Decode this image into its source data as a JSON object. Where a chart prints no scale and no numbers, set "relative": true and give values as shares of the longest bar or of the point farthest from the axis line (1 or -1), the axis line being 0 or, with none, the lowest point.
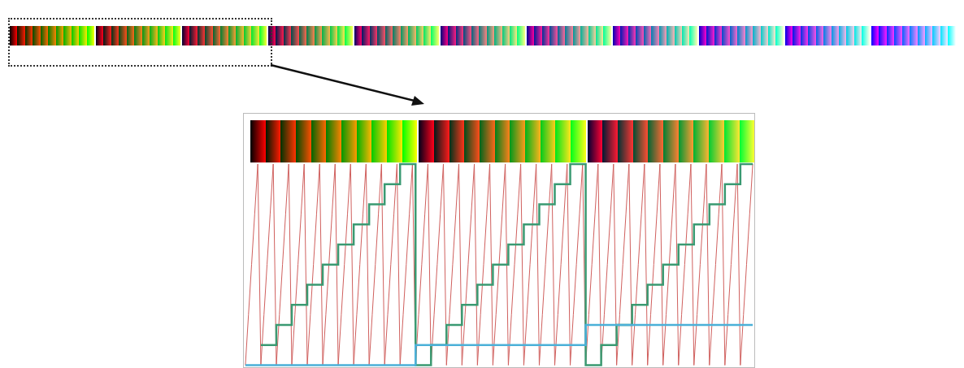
{
  "chart_data": {
    "type": "line",
    "relative": true,
    "categories": [
      null,
      null,
      null,
      null,
      null,
      null,
      null,
      null,
      null,
      null,
      null,
      null,
      null,
      null,
      null,
      null,
      null,
      null,
      null,
      null,
      null,
      null,
      null,
      null,
      null,
      null,
      null,
      null,
      null,
      null,
      null,
      null,
      null,
      null,
      null,
      null,
      null,
      null,
      null,
      null,
      null,
      null,
      null,
      null,
      null,
      null,
      null,
      null,
      null,
      null,
      null,
      null,
      null,
      null,
      null,
      null,
      null,
      null,
      null,
      null,
      null,
      null,
      null,
      null,
      null,
      null,
      null,
      null,
      null,
      null,
      null,
      null,
      null,
      null,
      null,
      null,
      null,
      null,
      null,
      null,
      null,
      null,
      null,
      null,
      null,
      null,
      null,
      null,
      null,
      null,
      null,
      null,
      null,
      null,
      null,
      null,
      null,
      null,
      null,
      null,
      null,
      null,
      null,
      null,
      null,
      null,
      null,
      null,
      null,
      null,
      null,
      null,
      null,
      null,
      null,
      null,
      null,
      null,
      null,
      null,
      null,
      null,
      null,
      null,
      null,
      null,
      null,
      null,
      null,
      null,
      null,
      null,
      null,
      null,
      null,
      null,
      null,
      null,
      null,
      null,
      null,
      null,
      null,
      null,
      null,
      null,
      null,
      null,
      null,
      null,
      null,
      null,
      null,
      null,
      null,
      null,
      null,
      null,
      null,
      null,
      null,
      null,
      null,
      null,
      null
    ],
    "series": [
      {
        "color": "#d0605e",
        "values": [
          0,
          0.25,
          0.5,
          0.75,
          1,
          0,
          0.25,
          0.5,
          0.75,
          1,
          0,
          0.25,
          0.5,
          0.75,
          1,
          0,
          0.25,
          0.5,
          0.75,
          1,
          0,
          0.25,
          0.5,
          0.75,
          1,
          0,
          0.25,
          0.5,
          0.75,
          1,
          0,
          0.25,
          0.5,
          0.75,
          1,
          0,
          0.25,
          0.5,
          0.75,
          1,
          0,
          0.25,
          0.5,
          0.75,
          1,
          0,
          0.25,
          0.5,
          0.75,
          1,
          0,
          0.25,
          0.5,
          0.75,
          1,
          0,
          0.25,
          0.5,
          0.75,
          1,
          0,
          0.25,
          0.5,
          0.75,
          1,
          0,
          0.25,
          0.5,
          0.75,
          1,
          0,
          0.25,
          0.5,
          0.75,
          1,
          0,
          0.25,
          0.5,
          0.75,
          1,
          0,
          0.25,
          0.5,
          0.75,
          1,
          0,
          0.25,
          0.5,
          0.75,
          1,
          0,
          0.25,
          0.5,
          0.75,
          1,
          0,
          0.25,
          0.5,
          0.75,
          1,
          0,
          0.25,
          0.5,
          0.75,
          1,
          0,
          0.25,
          0.5,
          0.75,
          1,
          0,
          0.25,
          0.5,
          0.75,
          1,
          0,
          0.25,
          0.5,
          0.75,
          1,
          0,
          0.25,
          0.5,
          0.75,
          1,
          0,
          0.25,
          0.5,
          0.75,
          1,
          0,
          0.25,
          0.5,
          0.75,
          1,
          0,
          0.25,
          0.5,
          0.75,
          1,
          0,
          0.25,
          0.5,
          0.75,
          1,
          0,
          0.25,
          0.5,
          0.75,
          1,
          0,
          0.25,
          0.5,
          0.75,
          1,
          0,
          0.25,
          0.5,
          0.75,
          1,
          0,
          0.25,
          0.5,
          0.75,
          1
        ]
      },
      {
        "type": "step",
        "color": "#3a9a72",
        "values": [
          null,
          null,
          null,
          null,
          null,
          0.1,
          0.1,
          0.1,
          0.1,
          0.1,
          0.2,
          0.2,
          0.2,
          0.2,
          0.2,
          0.3,
          0.3,
          0.3,
          0.3,
          0.3,
          0.4,
          0.4,
          0.4,
          0.4,
          0.4,
          0.5,
          0.5,
          0.5,
          0.5,
          0.5,
          0.6,
          0.6,
          0.6,
          0.6,
          0.6,
          0.7,
          0.7,
          0.7,
          0.7,
          0.7,
          0.8,
          0.8,
          0.8,
          0.8,
          0.8,
          0.9,
          0.9,
          0.9,
          0.9,
          0.9,
          1,
          1,
          1,
          1,
          1,
          0,
          0,
          0,
          0,
          0,
          0.1,
          0.1,
          0.1,
          0.1,
          0.1,
          0.2,
          0.2,
          0.2,
          0.2,
          0.2,
          0.3,
          0.3,
          0.3,
          0.3,
          0.3,
          0.4,
          0.4,
          0.4,
          0.4,
          0.4,
          0.5,
          0.5,
          0.5,
          0.5,
          0.5,
          0.6,
          0.6,
          0.6,
          0.6,
          0.6,
          0.7,
          0.7,
          0.7,
          0.7,
          0.7,
          0.8,
          0.8,
          0.8,
          0.8,
          0.8,
          0.9,
          0.9,
          0.9,
          0.9,
          0.9,
          1,
          1,
          1,
          1,
          1,
          0,
          0,
          0,
          0,
          0,
          0.1,
          0.1,
          0.1,
          0.1,
          0.1,
          0.2,
          0.2,
          0.2,
          0.2,
          0.2,
          0.3,
          0.3,
          0.3,
          0.3,
          0.3,
          0.4,
          0.4,
          0.4,
          0.4,
          0.4,
          0.5,
          0.5,
          0.5,
          0.5,
          0.5,
          0.6,
          0.6,
          0.6,
          0.6,
          0.6,
          0.7,
          0.7,
          0.7,
          0.7,
          0.7,
          0.8,
          0.8,
          0.8,
          0.8,
          0.8,
          0.9,
          0.9,
          0.9,
          0.9,
          0.9,
          1,
          1,
          1,
          1,
          1
        ]
      },
      {
        "type": "step",
        "color": "#4bb0d8",
        "values": [
          0,
          0,
          0,
          0,
          0,
          0,
          0,
          0,
          0,
          0,
          0,
          0,
          0,
          0,
          0,
          0,
          0,
          0,
          0,
          0,
          0,
          0,
          0,
          0,
          0,
          0,
          0,
          0,
          0,
          0,
          0,
          0,
          0,
          0,
          0,
          0,
          0,
          0,
          0,
          0,
          0,
          0,
          0,
          0,
          0,
          0,
          0,
          0,
          0,
          0,
          0,
          0,
          0,
          0,
          0,
          0.1,
          0.1,
          0.1,
          0.1,
          0.1,
          0.1,
          0.1,
          0.1,
          0.1,
          0.1,
          0.1,
          0.1,
          0.1,
          0.1,
          0.1,
          0.1,
          0.1,
          0.1,
          0.1,
          0.1,
          0.1,
          0.1,
          0.1,
          0.1,
          0.1,
          0.1,
          0.1,
          0.1,
          0.1,
          0.1,
          0.1,
          0.1,
          0.1,
          0.1,
          0.1,
          0.1,
          0.1,
          0.1,
          0.1,
          0.1,
          0.1,
          0.1,
          0.1,
          0.1,
          0.1,
          0.1,
          0.1,
          0.1,
          0.1,
          0.1,
          0.1,
          0.1,
          0.1,
          0.1,
          0.1,
          0.2,
          0.2,
          0.2,
          0.2,
          0.2,
          0.2,
          0.2,
          0.2,
          0.2,
          0.2,
          0.2,
          0.2,
          0.2,
          0.2,
          0.2,
          0.2,
          0.2,
          0.2,
          0.2,
          0.2,
          0.2,
          0.2,
          0.2,
          0.2,
          0.2,
          0.2,
          0.2,
          0.2,
          0.2,
          0.2,
          0.2,
          0.2,
          0.2,
          0.2,
          0.2,
          0.2,
          0.2,
          0.2,
          0.2,
          0.2,
          0.2,
          0.2,
          0.2,
          0.2,
          0.2,
          0.2,
          0.2,
          0.2,
          0.2,
          0.2,
          0.2,
          0.2,
          0.2,
          0.2,
          0.2
        ]
      }
    ]
  }
}
